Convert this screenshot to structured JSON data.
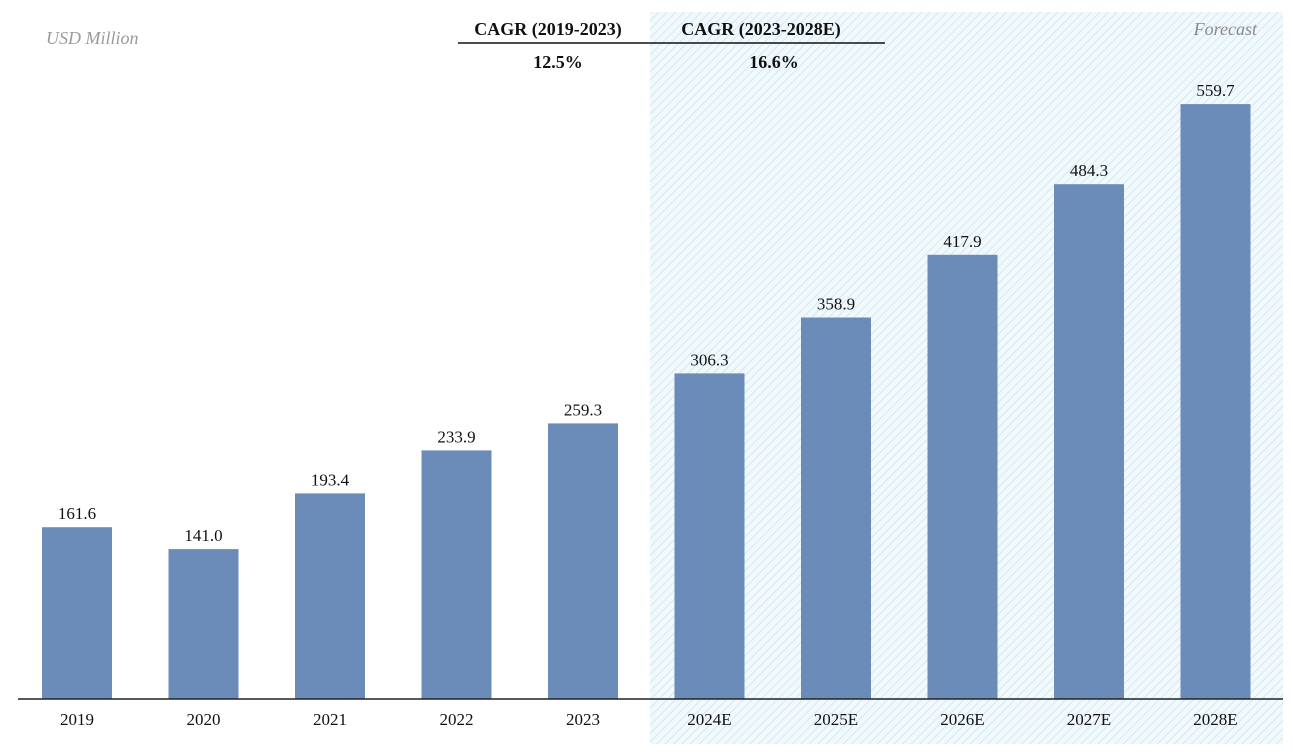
{
  "chart_data": {
    "type": "bar",
    "unit_label": "USD Million",
    "forecast_label": "Forecast",
    "categories": [
      "2019",
      "2020",
      "2021",
      "2022",
      "2023",
      "2024E",
      "2025E",
      "2026E",
      "2027E",
      "2028E"
    ],
    "values": [
      161.6,
      141.0,
      193.4,
      233.9,
      259.3,
      306.3,
      358.9,
      417.9,
      484.3,
      559.7
    ],
    "value_labels": [
      "161.6",
      "141.0",
      "193.4",
      "233.9",
      "259.3",
      "306.3",
      "358.9",
      "417.9",
      "484.3",
      "559.7"
    ],
    "forecast_start_index": 5,
    "ylim": [
      0,
      620
    ],
    "grid": false,
    "cagr": [
      {
        "label": "CAGR (2019-2023)",
        "value": "12.5%"
      },
      {
        "label": "CAGR (2023-2028E)",
        "value": "16.6%"
      }
    ],
    "colors": {
      "bar": "#6b8bb8",
      "forecast_hatch": "#c9e3ef",
      "forecast_bg": "#f2f9fc",
      "axis": "#222222"
    }
  }
}
